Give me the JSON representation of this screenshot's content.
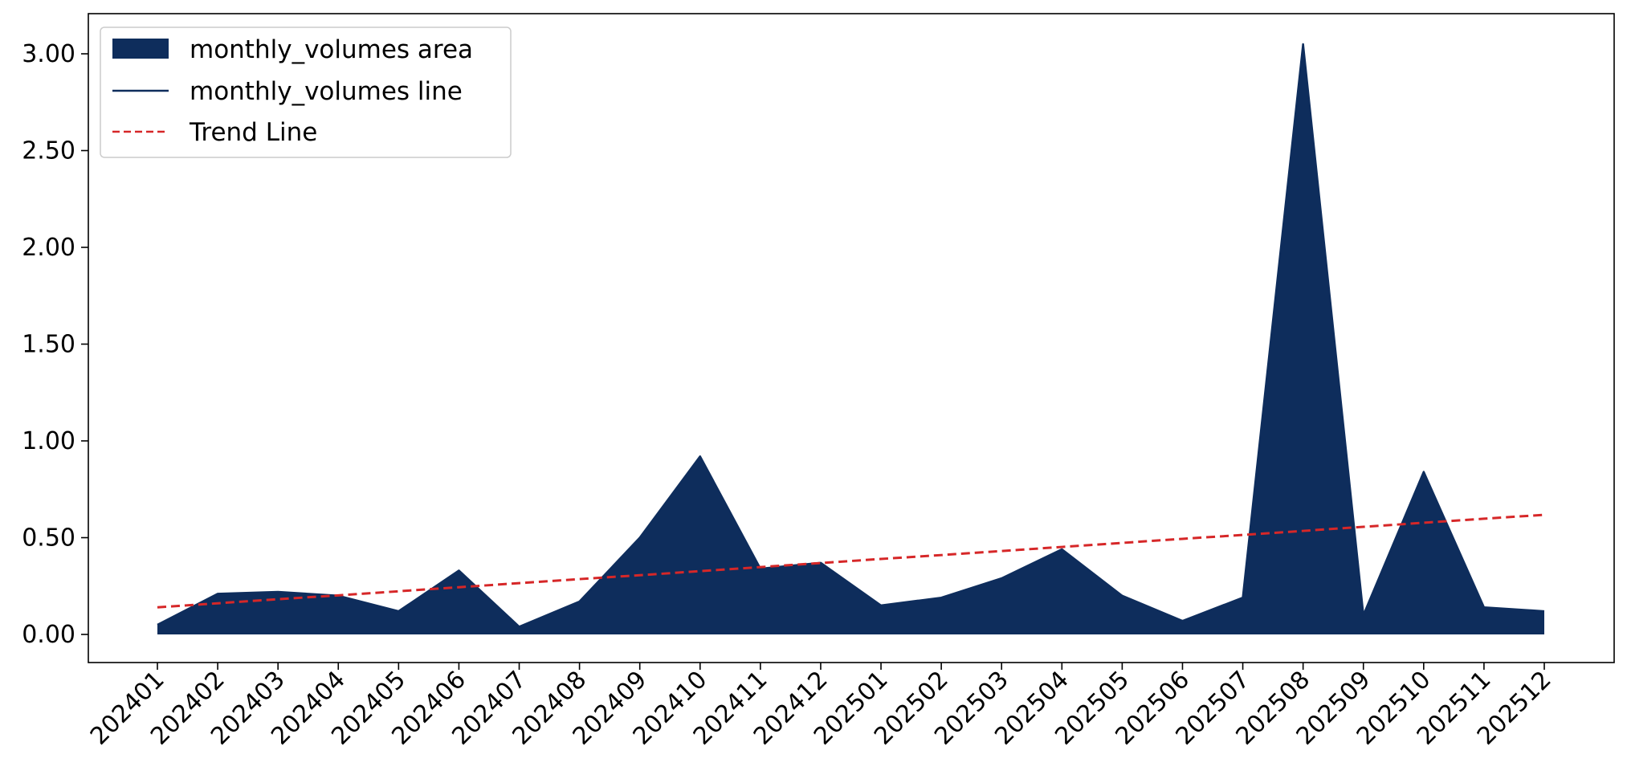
{
  "chart_data": {
    "type": "area",
    "x": [
      "202401",
      "202402",
      "202403",
      "202404",
      "202405",
      "202406",
      "202407",
      "202408",
      "202409",
      "202410",
      "202411",
      "202412",
      "202501",
      "202502",
      "202503",
      "202504",
      "202505",
      "202506",
      "202507",
      "202508",
      "202509",
      "202510",
      "202511",
      "202512"
    ],
    "series": [
      {
        "name": "monthly_volumes area",
        "kind": "area",
        "values": [
          0.05,
          0.21,
          0.22,
          0.2,
          0.12,
          0.33,
          0.04,
          0.17,
          0.5,
          0.92,
          0.34,
          0.37,
          0.15,
          0.19,
          0.29,
          0.44,
          0.2,
          0.07,
          0.19,
          3.05,
          0.1,
          0.84,
          0.14,
          0.12
        ],
        "color": "#0e2d5c"
      },
      {
        "name": "monthly_volumes line",
        "kind": "line",
        "values": [
          0.05,
          0.21,
          0.22,
          0.2,
          0.12,
          0.33,
          0.04,
          0.17,
          0.5,
          0.92,
          0.34,
          0.37,
          0.15,
          0.19,
          0.29,
          0.44,
          0.2,
          0.07,
          0.19,
          3.05,
          0.1,
          0.84,
          0.14,
          0.12
        ],
        "color": "#0e2d5c"
      },
      {
        "name": "Trend Line",
        "kind": "dashed-line",
        "values": [
          0.14,
          0.161,
          0.182,
          0.202,
          0.223,
          0.244,
          0.265,
          0.286,
          0.306,
          0.327,
          0.348,
          0.369,
          0.39,
          0.41,
          0.431,
          0.452,
          0.473,
          0.494,
          0.514,
          0.535,
          0.556,
          0.577,
          0.598,
          0.618
        ],
        "color": "#d62728"
      }
    ],
    "title": "",
    "xlabel": "",
    "ylabel": "",
    "ylim": [
      -0.14,
      3.2
    ],
    "yticks": [
      0,
      0.5,
      1.0,
      1.5,
      2.0,
      2.5,
      3.0
    ],
    "ytick_labels": [
      "0.00",
      "0.50",
      "1.00",
      "1.50",
      "2.00",
      "2.50",
      "3.00"
    ],
    "legend": {
      "placement": "top-left",
      "entries": [
        "monthly_volumes area",
        "monthly_volumes line",
        "Trend Line"
      ]
    },
    "grid": false
  }
}
